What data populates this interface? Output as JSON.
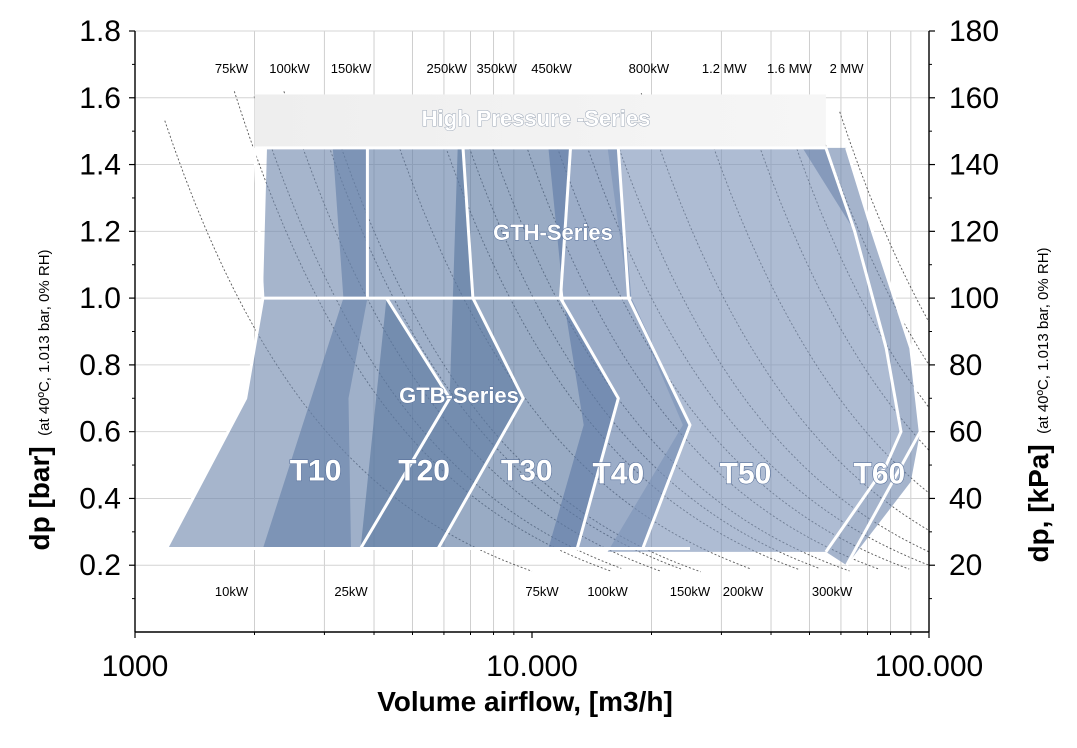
{
  "chart_data": {
    "type": "area",
    "xscale": "log",
    "xlabel": "Volume airflow, [m3/h]",
    "ylabel": "dp [bar]",
    "ylabel_note": "(at 40ºC, 1.013 bar, 0% RH)",
    "y2label": "dp, [kPa]",
    "y2label_note": "(at 40ºC, 1.013 bar, 0% RH)",
    "xlim": [
      1000,
      100000
    ],
    "ylim": [
      0,
      1.8
    ],
    "y2lim": [
      0,
      180
    ],
    "xticks": [
      {
        "value": 1000,
        "label": "1000"
      },
      {
        "value": 10000,
        "label": "10.000"
      },
      {
        "value": 100000,
        "label": "100.000"
      }
    ],
    "yticks": [
      {
        "value": 0.2,
        "label": "0.2"
      },
      {
        "value": 0.4,
        "label": "0.4"
      },
      {
        "value": 0.6,
        "label": "0.6"
      },
      {
        "value": 0.8,
        "label": "0.8"
      },
      {
        "value": 1.0,
        "label": "1.0"
      },
      {
        "value": 1.2,
        "label": "1.2"
      },
      {
        "value": 1.4,
        "label": "1.4"
      },
      {
        "value": 1.6,
        "label": "1.6"
      },
      {
        "value": 1.8,
        "label": "1.8"
      }
    ],
    "y2ticks": [
      {
        "value": 20,
        "label": "20"
      },
      {
        "value": 40,
        "label": "40"
      },
      {
        "value": 60,
        "label": "60"
      },
      {
        "value": 80,
        "label": "80"
      },
      {
        "value": 100,
        "label": "100"
      },
      {
        "value": 120,
        "label": "120"
      },
      {
        "value": 140,
        "label": "140"
      },
      {
        "value": 160,
        "label": "160"
      },
      {
        "value": 180,
        "label": "180"
      }
    ],
    "grid": true,
    "series_labels": {
      "high_pressure": "High Pressure -Series",
      "gth": "GTH-Series",
      "gtb": "GTB-Series"
    },
    "high_pressure_band": {
      "x": [
        2000,
        55000
      ],
      "y": [
        1.45,
        1.61
      ]
    },
    "zones": [
      {
        "name": "T10",
        "points": [
          [
            2000,
            1.45
          ],
          [
            3850,
            1.45
          ],
          [
            3850,
            1.0
          ],
          [
            3450,
            0.7
          ],
          [
            3500,
            0.25
          ],
          [
            1200,
            0.25
          ],
          [
            1900,
            0.7
          ],
          [
            2100,
            1.0
          ],
          [
            2150,
            1.45
          ]
        ]
      },
      {
        "name": "T20",
        "points": [
          [
            3150,
            1.45
          ],
          [
            6700,
            1.45
          ],
          [
            7100,
            1.0
          ],
          [
            9500,
            0.7
          ],
          [
            5800,
            0.25
          ],
          [
            2100,
            0.25
          ],
          [
            3350,
            1.0
          ]
        ]
      },
      {
        "name": "T30",
        "points": [
          [
            6000,
            1.45
          ],
          [
            12500,
            1.45
          ],
          [
            11800,
            1.0
          ],
          [
            16500,
            0.7
          ],
          [
            13000,
            0.25
          ],
          [
            3700,
            0.25
          ],
          [
            4300,
            1.0
          ],
          [
            6200,
            0.7
          ],
          [
            6500,
            1.45
          ]
        ]
      },
      {
        "name": "T40",
        "points": [
          [
            11000,
            1.45
          ],
          [
            16500,
            1.45
          ],
          [
            17800,
            1.0
          ],
          [
            25000,
            0.62
          ],
          [
            19000,
            0.25
          ],
          [
            11000,
            0.25
          ],
          [
            13500,
            0.62
          ],
          [
            12000,
            1.0
          ]
        ]
      },
      {
        "name": "T50",
        "points": [
          [
            15500,
            1.45
          ],
          [
            55000,
            1.45
          ],
          [
            65000,
            1.2
          ],
          [
            78000,
            0.85
          ],
          [
            85000,
            0.6
          ],
          [
            78000,
            0.5
          ],
          [
            55000,
            0.24
          ],
          [
            15500,
            0.24
          ],
          [
            24000,
            0.62
          ],
          [
            17500,
            1.0
          ]
        ]
      },
      {
        "name": "T60",
        "points": [
          [
            48000,
            1.45
          ],
          [
            62000,
            1.45
          ],
          [
            72000,
            1.2
          ],
          [
            90000,
            0.85
          ],
          [
            95000,
            0.6
          ],
          [
            90000,
            0.45
          ],
          [
            62000,
            0.2
          ],
          [
            55000,
            0.24
          ],
          [
            78000,
            0.5
          ],
          [
            85000,
            0.6
          ],
          [
            78000,
            0.85
          ],
          [
            65000,
            1.2
          ]
        ]
      }
    ],
    "zone_boundaries": [
      {
        "name": "GTH T10/T20",
        "points": [
          [
            3850,
            1.45
          ],
          [
            3850,
            1.0
          ]
        ]
      },
      {
        "name": "GTH T20/T30",
        "points": [
          [
            6700,
            1.45
          ],
          [
            7100,
            1.0
          ]
        ]
      },
      {
        "name": "GTH T30/T40",
        "points": [
          [
            12500,
            1.45
          ],
          [
            11800,
            1.0
          ]
        ]
      },
      {
        "name": "GTB T10 left",
        "points": [
          [
            2100,
            1.0
          ],
          [
            1900,
            0.7
          ],
          [
            1200,
            0.25
          ]
        ]
      },
      {
        "name": "GTB T10/T20",
        "points": [
          [
            4300,
            1.0
          ],
          [
            6200,
            0.7
          ],
          [
            3700,
            0.25
          ]
        ]
      },
      {
        "name": "GTB T20/T30",
        "points": [
          [
            7100,
            1.0
          ],
          [
            9500,
            0.7
          ],
          [
            5800,
            0.25
          ]
        ]
      },
      {
        "name": "GTB T30/T40",
        "points": [
          [
            11800,
            1.0
          ],
          [
            16500,
            0.7
          ],
          [
            13000,
            0.25
          ]
        ]
      },
      {
        "name": "GTB T40/T50",
        "points": [
          [
            16500,
            1.45
          ],
          [
            17500,
            1.0
          ],
          [
            25000,
            0.62
          ],
          [
            19000,
            0.25
          ]
        ]
      },
      {
        "name": "GTB top edge",
        "points": [
          [
            2100,
            1.0
          ],
          [
            17800,
            1.0
          ]
        ]
      },
      {
        "name": "GTB bottom edge",
        "points": [
          [
            1200,
            0.25
          ],
          [
            25000,
            0.25
          ]
        ]
      },
      {
        "name": "GTH left edge",
        "points": [
          [
            2000,
            1.45
          ],
          [
            2100,
            1.0
          ]
        ]
      },
      {
        "name": "GTH top edge",
        "points": [
          [
            2000,
            1.45
          ],
          [
            55000,
            1.45
          ]
        ]
      },
      {
        "name": "T50/T60",
        "points": [
          [
            55000,
            1.45
          ],
          [
            65000,
            1.2
          ],
          [
            78000,
            0.85
          ],
          [
            85000,
            0.6
          ],
          [
            78000,
            0.5
          ],
          [
            55000,
            0.24
          ]
        ]
      },
      {
        "name": "T60 right edge",
        "points": [
          [
            62000,
            1.45
          ],
          [
            72000,
            1.2
          ],
          [
            90000,
            0.85
          ],
          [
            95000,
            0.6
          ],
          [
            62000,
            0.2
          ]
        ]
      }
    ],
    "zone_labels": [
      {
        "text": "T10",
        "x": 2850,
        "y": 0.49
      },
      {
        "text": "T20",
        "x": 5350,
        "y": 0.49
      },
      {
        "text": "T30",
        "x": 9700,
        "y": 0.49
      },
      {
        "text": "T40",
        "x": 16500,
        "y": 0.48
      },
      {
        "text": "T50",
        "x": 34500,
        "y": 0.48
      },
      {
        "text": "T60",
        "x": 75000,
        "y": 0.48
      }
    ],
    "power_labels_top": [
      {
        "text": "75kW",
        "x": 1750
      },
      {
        "text": "100kW",
        "x": 2450
      },
      {
        "text": "150kW",
        "x": 3500
      },
      {
        "text": "250kW",
        "x": 6100
      },
      {
        "text": "350kW",
        "x": 8150
      },
      {
        "text": "450kW",
        "x": 11200
      },
      {
        "text": "800kW",
        "x": 19700
      },
      {
        "text": "1.2 MW",
        "x": 30500
      },
      {
        "text": "1.6 MW",
        "x": 44500
      },
      {
        "text": "2  MW",
        "x": 62000
      }
    ],
    "power_labels_bottom": [
      {
        "text": "10kW",
        "x": 1750
      },
      {
        "text": "25kW",
        "x": 3500
      },
      {
        "text": "75kW",
        "x": 10600
      },
      {
        "text": "100kW",
        "x": 15500
      },
      {
        "text": "150kW",
        "x": 25000
      },
      {
        "text": "200kW",
        "x": 34000
      },
      {
        "text": "300kW",
        "x": 57000
      }
    ],
    "power_curve_anchors": [
      [
        1400,
        1.3
      ],
      [
        1800,
        1.6
      ],
      [
        2000,
        1.6
      ],
      [
        2400,
        1.6
      ],
      [
        2800,
        1.6
      ],
      [
        3000,
        1.6
      ],
      [
        4200,
        1.6
      ],
      [
        5500,
        1.6
      ],
      [
        6300,
        1.6
      ],
      [
        7200,
        1.6
      ],
      [
        8800,
        1.6
      ],
      [
        10500,
        1.6
      ],
      [
        12500,
        1.6
      ],
      [
        15000,
        1.6
      ],
      [
        19000,
        1.6
      ],
      [
        26000,
        1.6
      ],
      [
        34000,
        1.6
      ],
      [
        42000,
        1.6
      ],
      [
        50000,
        1.6
      ],
      [
        58000,
        1.6
      ]
    ]
  }
}
